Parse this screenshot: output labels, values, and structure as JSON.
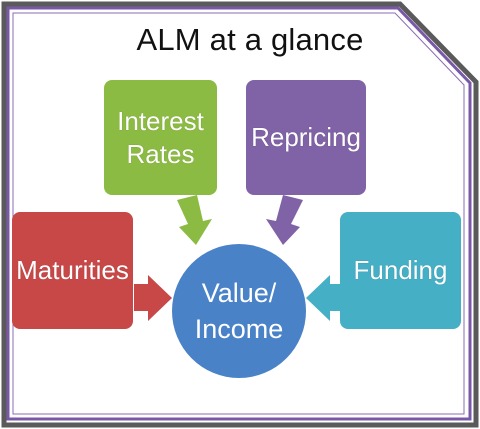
{
  "title": "ALM at a glance",
  "boxes": {
    "interest_rates": {
      "label": "Interest\nRates",
      "color": "#8CBB43"
    },
    "repricing": {
      "label": "Repricing",
      "color": "#8062A6"
    },
    "maturities": {
      "label": "Maturities",
      "color": "#C84848"
    },
    "funding": {
      "label": "Funding",
      "color": "#45AFC6"
    }
  },
  "center": {
    "label": "Value/\nIncome",
    "color": "#4A82C8"
  },
  "frame": {
    "border": "#7a58a8",
    "shadow": "#5a5a5a"
  }
}
